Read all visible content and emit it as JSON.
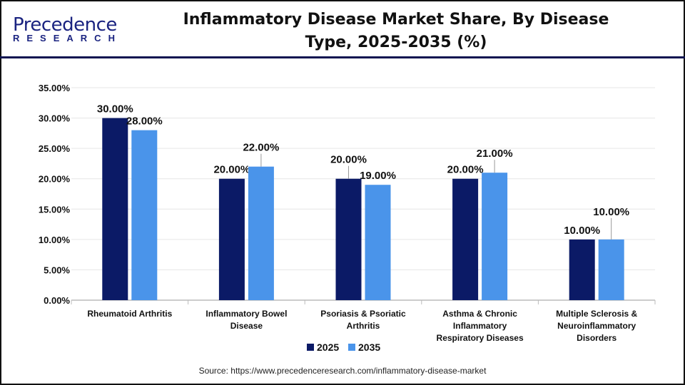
{
  "logo": {
    "line1": "Precedence",
    "line2": "RESEARCH"
  },
  "title": "Inflammatory Disease Market Share, By Disease Type, 2025-2035 (%)",
  "source": "Source: https://www.precedenceresearch.com/inflammatory-disease-market",
  "colors": {
    "2025": "#0b1a66",
    "2035": "#4a94ea"
  },
  "chart_data": {
    "type": "bar",
    "title": "Inflammatory Disease Market Share, By Disease Type, 2025-2035 (%)",
    "categories": [
      [
        "Rheumatoid Arthritis"
      ],
      [
        "Inflammatory Bowel",
        "Disease"
      ],
      [
        "Psoriasis & Psoriatic",
        "Arthritis"
      ],
      [
        "Asthma & Chronic",
        "Inflammatory",
        "Respiratory Diseases"
      ],
      [
        "Multiple Sclerosis &",
        "Neuroinflammatory",
        "Disorders"
      ]
    ],
    "series": [
      {
        "name": "2025",
        "values": [
          30,
          20,
          20,
          20,
          10
        ],
        "labels": [
          "30.00%",
          "20.00%",
          "20.00%",
          "20.00%",
          "10.00%"
        ]
      },
      {
        "name": "2035",
        "values": [
          28,
          22,
          19,
          21,
          10
        ],
        "labels": [
          "28.00%",
          "22.00%",
          "19.00%",
          "21.00%",
          "10.00%"
        ]
      }
    ],
    "ylim": [
      0,
      35
    ],
    "yticks": [
      "0.00%",
      "5.00%",
      "10.00%",
      "15.00%",
      "20.00%",
      "25.00%",
      "30.00%",
      "35.00%"
    ],
    "grid": true,
    "legend": "bottom"
  }
}
